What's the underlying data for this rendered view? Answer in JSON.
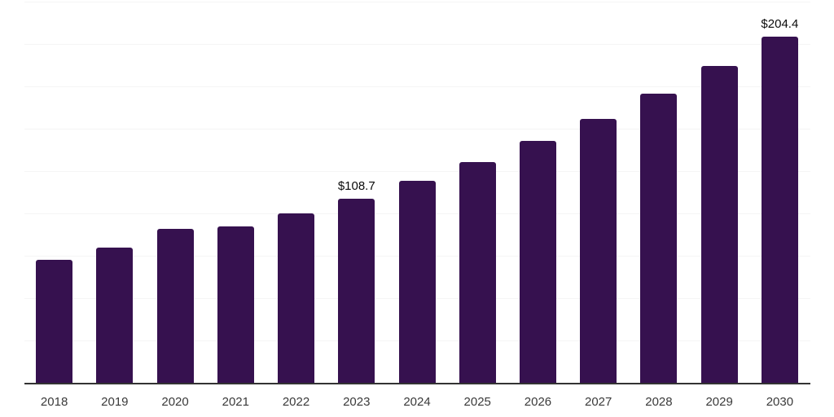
{
  "chart_data": {
    "type": "bar",
    "title": "",
    "xlabel": "",
    "ylabel": "",
    "categories": [
      "2018",
      "2019",
      "2020",
      "2021",
      "2022",
      "2023",
      "2024",
      "2025",
      "2026",
      "2027",
      "2028",
      "2029",
      "2030"
    ],
    "values": [
      72.8,
      79.6,
      91.0,
      92.1,
      99.8,
      108.7,
      119.4,
      130.1,
      142.6,
      155.8,
      170.5,
      186.9,
      204.4
    ],
    "value_labels": [
      {
        "index": 5,
        "text": "$108.7"
      },
      {
        "index": 12,
        "text": "$204.4"
      }
    ],
    "ylim": [
      0,
      225
    ],
    "grid_step": 25,
    "grid": "horizontal",
    "legend": "none",
    "y_tick_labels": "none",
    "colors": {
      "bar": "#36114f",
      "grid": "#f5f5f5",
      "axis": "#333333",
      "tick_label": "#3a3a3a",
      "value_label": "#0a0a0a",
      "background": "#ffffff"
    }
  }
}
